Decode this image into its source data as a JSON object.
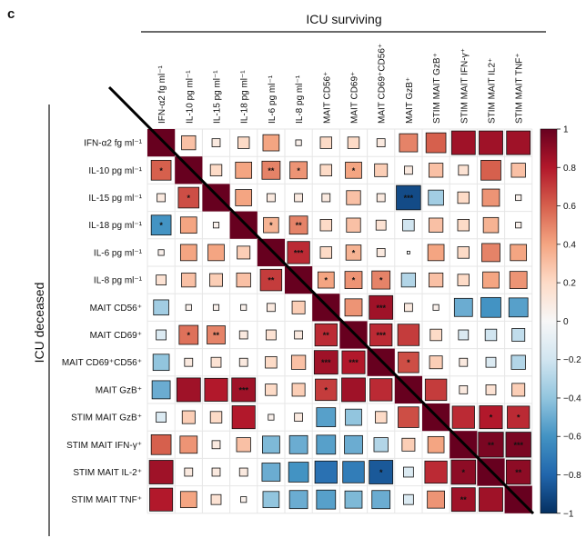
{
  "panel_label": "c",
  "top_group_label": "ICU surviving",
  "left_group_label": "ICU deceased",
  "colors": {
    "negative": "#053061",
    "neutral": "#f7f7f7",
    "positive": "#67001f",
    "grid": "#e6e6e6"
  },
  "chart_data": {
    "type": "heatmap",
    "title": "",
    "variables": [
      "IFN-α2 fg ml⁻¹",
      "IL-10 pg ml⁻¹",
      "IL-15 pg ml⁻¹",
      "IL-18 pg ml⁻¹",
      "IL-6 pg ml⁻¹",
      "IL-8 pg ml⁻¹",
      "MAIT CD56⁺",
      "MAIT CD69⁺",
      "MAIT CD69⁺CD56⁺",
      "MAIT GzB⁺",
      "STIM MAIT GzB⁺",
      "STIM MAIT IFN-γ⁺",
      "STIM MAIT IL2⁺",
      "STIM MAIT TNF⁺"
    ],
    "row_labels": [
      "IFN-α2 fg ml⁻¹",
      "IL-10 pg ml⁻¹",
      "IL-15 pg ml⁻¹",
      "IL-18 pg ml⁻¹",
      "IL-6 pg ml⁻¹",
      "IL-8 pg ml⁻¹",
      "MAIT CD56⁺",
      "MAIT CD69⁺",
      "MAIT CD69⁺CD56⁺",
      "MAIT GzB⁺",
      "STIM MAIT GzB⁺",
      "STIM MAIT IFN-γ⁺",
      "STIM MAIT IL-2⁺",
      "STIM MAIT TNF⁺"
    ],
    "upper_triangle_group": "ICU surviving",
    "lower_triangle_group": "ICU deceased",
    "colorbar": {
      "range": [
        -1,
        1
      ],
      "ticks": [
        1,
        0.8,
        0.6,
        0.4,
        0.2,
        0,
        -0.2,
        -0.4,
        -0.6,
        -0.8,
        -1
      ],
      "tick_labels": [
        "1",
        "0.8",
        "0.6",
        "0.4",
        "0.2",
        "0",
        "−0.2",
        "−0.4",
        "−0.6",
        "−0.8",
        "−1"
      ]
    },
    "matrix": [
      [
        1,
        0.3,
        0.1,
        0.2,
        0.4,
        0.05,
        0.2,
        0.2,
        0.1,
        0.5,
        0.6,
        0.85,
        0.85,
        0.85
      ],
      [
        0.6,
        1,
        0.2,
        0.4,
        0.5,
        0.45,
        0.2,
        0.4,
        0.25,
        0.1,
        0.3,
        0.15,
        0.6,
        0.3
      ],
      [
        0.1,
        0.65,
        1,
        0.4,
        0.1,
        0.1,
        0.1,
        0.3,
        0.1,
        -0.9,
        -0.35,
        0.2,
        0.45,
        0.05
      ],
      [
        -0.6,
        0.4,
        0.05,
        1,
        0.35,
        0.5,
        0.2,
        0.3,
        0.15,
        -0.2,
        0.3,
        0.2,
        0.35,
        0.05
      ],
      [
        0.05,
        0.4,
        0.4,
        0.25,
        1,
        0.75,
        0.2,
        0.35,
        0.1,
        0.0,
        0.4,
        0.2,
        0.5,
        0.4
      ],
      [
        0.15,
        0.3,
        0.25,
        0.3,
        0.7,
        1,
        0.4,
        0.45,
        0.5,
        -0.3,
        0.3,
        0.2,
        0.4,
        0.45
      ],
      [
        -0.35,
        0.05,
        0.05,
        0.05,
        0.1,
        0.25,
        1,
        0.45,
        0.85,
        0.1,
        0.05,
        -0.5,
        -0.6,
        -0.55
      ],
      [
        -0.15,
        0.55,
        0.5,
        0.1,
        0.15,
        0.1,
        0.75,
        1,
        0.75,
        0.7,
        0.2,
        -0.15,
        -0.2,
        -0.25
      ],
      [
        -0.4,
        0.1,
        0.15,
        0.1,
        0.2,
        0.3,
        0.85,
        0.8,
        1,
        0.65,
        0.25,
        0.1,
        -0.15,
        -0.3
      ],
      [
        -0.5,
        0.85,
        0.8,
        0.85,
        0.2,
        0.25,
        0.7,
        0.85,
        0.75,
        1,
        0.7,
        0.1,
        0.15,
        0.25
      ],
      [
        -0.15,
        0.25,
        0.2,
        0.8,
        0.05,
        0.1,
        -0.55,
        -0.4,
        0.2,
        0.65,
        1,
        0.75,
        0.8,
        0.75
      ],
      [
        0.6,
        0.45,
        0.1,
        0.3,
        -0.45,
        -0.5,
        -0.55,
        -0.5,
        -0.3,
        0.25,
        0.4,
        1,
        0.95,
        0.95
      ],
      [
        0.85,
        0.1,
        0.1,
        0.1,
        -0.5,
        -0.6,
        -0.75,
        -0.7,
        -0.85,
        -0.15,
        0.75,
        0.9,
        1,
        0.9
      ],
      [
        0.8,
        0.4,
        0.15,
        0.05,
        -0.4,
        -0.5,
        -0.55,
        -0.45,
        -0.5,
        -0.15,
        0.45,
        0.85,
        0.85,
        1
      ]
    ],
    "significance": [
      [
        "",
        "",
        "",
        "",
        "",
        "",
        "",
        "",
        "",
        "",
        "",
        "",
        "",
        ""
      ],
      [
        "*",
        "",
        "",
        "",
        "**",
        "*",
        "",
        "*",
        "",
        "",
        "",
        "",
        "",
        ""
      ],
      [
        "",
        "*",
        "",
        "",
        "",
        "",
        "",
        "",
        "",
        "***",
        "",
        "",
        "",
        ""
      ],
      [
        "*",
        "",
        "",
        "",
        "*",
        "**",
        "",
        "",
        "",
        "",
        "",
        "",
        "",
        ""
      ],
      [
        "",
        "",
        "",
        "",
        "",
        "***",
        "",
        "*",
        "",
        "",
        "",
        "",
        "",
        ""
      ],
      [
        "",
        "",
        "",
        "",
        "**",
        "",
        "*",
        "*",
        "*",
        "",
        "",
        "",
        "",
        ""
      ],
      [
        "",
        "",
        "",
        "",
        "",
        "",
        "",
        "",
        "***",
        "",
        "",
        "",
        "",
        ""
      ],
      [
        "",
        "*",
        "**",
        "",
        "",
        "",
        "**",
        "",
        "***",
        "",
        "",
        "",
        "",
        ""
      ],
      [
        "",
        "",
        "",
        "",
        "",
        "",
        "***",
        "***",
        "",
        "*",
        "",
        "",
        "",
        ""
      ],
      [
        "",
        "",
        "",
        "***",
        "",
        "",
        "*",
        "",
        "",
        "",
        "",
        "",
        "",
        ""
      ],
      [
        "",
        "",
        "",
        "",
        "",
        "",
        "",
        "",
        "",
        "",
        "",
        "",
        "*",
        "*"
      ],
      [
        "",
        "",
        "",
        "",
        "",
        "",
        "",
        "",
        "",
        "",
        "",
        "",
        "**",
        "***"
      ],
      [
        "",
        "",
        "",
        "",
        "",
        "",
        "",
        "",
        "*",
        "",
        "",
        "*",
        "",
        "**"
      ],
      [
        "",
        "",
        "",
        "",
        "",
        "",
        "",
        "",
        "",
        "",
        "",
        "**",
        "",
        ""
      ]
    ]
  }
}
